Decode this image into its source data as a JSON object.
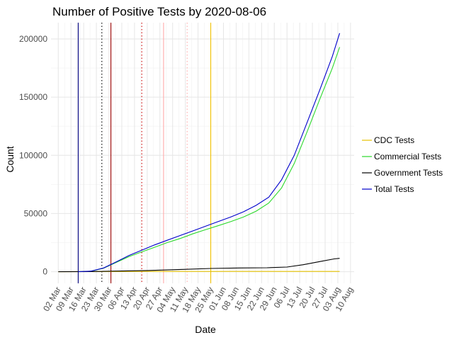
{
  "chart_data": {
    "type": "line",
    "title": "Number of Positive Tests by  2020-08-06",
    "xlabel": "Date",
    "ylabel": "Count",
    "xlim": [
      "2020-02-27",
      "2020-08-12"
    ],
    "ylim": [
      -10000,
      214000
    ],
    "x_ticks": [
      {
        "date": "2020-03-02",
        "label": "02 Mar"
      },
      {
        "date": "2020-03-09",
        "label": "09 Mar"
      },
      {
        "date": "2020-03-16",
        "label": "16 Mar"
      },
      {
        "date": "2020-03-23",
        "label": "23 Mar"
      },
      {
        "date": "2020-03-30",
        "label": "30 Mar"
      },
      {
        "date": "2020-04-06",
        "label": "06 Apr"
      },
      {
        "date": "2020-04-13",
        "label": "13 Apr"
      },
      {
        "date": "2020-04-20",
        "label": "20 Apr"
      },
      {
        "date": "2020-04-27",
        "label": "27 Apr"
      },
      {
        "date": "2020-05-04",
        "label": "04 May"
      },
      {
        "date": "2020-05-11",
        "label": "11 May"
      },
      {
        "date": "2020-05-18",
        "label": "18 May"
      },
      {
        "date": "2020-05-25",
        "label": "25 May"
      },
      {
        "date": "2020-06-01",
        "label": "01 Jun"
      },
      {
        "date": "2020-06-08",
        "label": "08 Jun"
      },
      {
        "date": "2020-06-15",
        "label": "15 Jun"
      },
      {
        "date": "2020-06-22",
        "label": "22 Jun"
      },
      {
        "date": "2020-06-29",
        "label": "29 Jun"
      },
      {
        "date": "2020-07-06",
        "label": "06 Jul"
      },
      {
        "date": "2020-07-13",
        "label": "13 Jul"
      },
      {
        "date": "2020-07-20",
        "label": "20 Jul"
      },
      {
        "date": "2020-07-27",
        "label": "27 Jul"
      },
      {
        "date": "2020-08-03",
        "label": "03 Aug"
      },
      {
        "date": "2020-08-10",
        "label": "10 Aug"
      }
    ],
    "y_ticks": [
      {
        "value": 0,
        "label": "0"
      },
      {
        "value": 50000,
        "label": "50000"
      },
      {
        "value": 100000,
        "label": "100000"
      },
      {
        "value": 150000,
        "label": "150000"
      },
      {
        "value": 200000,
        "label": "200000"
      }
    ],
    "grid": true,
    "legend": {
      "position": "right",
      "entries": [
        {
          "name": "CDC Tests",
          "color": "#e6c200"
        },
        {
          "name": "Commercial Tests",
          "color": "#2bd92b"
        },
        {
          "name": "Government Tests",
          "color": "#000000"
        },
        {
          "name": "Total Tests",
          "color": "#0000cc"
        }
      ]
    },
    "vlines": [
      {
        "date": "2020-03-13",
        "color": "#000080",
        "style": "solid"
      },
      {
        "date": "2020-03-26",
        "color": "#000000",
        "style": "dotted"
      },
      {
        "date": "2020-03-31",
        "color": "#990000",
        "style": "solid"
      },
      {
        "date": "2020-04-17",
        "color": "#cc0000",
        "style": "dotted"
      },
      {
        "date": "2020-04-29",
        "color": "#ffaaaa",
        "style": "solid"
      },
      {
        "date": "2020-05-12",
        "color": "#ffaaaa",
        "style": "dotted"
      },
      {
        "date": "2020-05-25",
        "color": "#f0c000",
        "style": "solid"
      }
    ],
    "series": [
      {
        "name": "CDC Tests",
        "color": "#e6c200",
        "points": [
          [
            "2020-03-02",
            0
          ],
          [
            "2020-03-20",
            100
          ],
          [
            "2020-04-20",
            200
          ],
          [
            "2020-06-01",
            200
          ],
          [
            "2020-08-04",
            200
          ]
        ]
      },
      {
        "name": "Commercial Tests",
        "color": "#2bd92b",
        "points": [
          [
            "2020-03-13",
            0
          ],
          [
            "2020-03-20",
            400
          ],
          [
            "2020-03-27",
            3000
          ],
          [
            "2020-04-03",
            8000
          ],
          [
            "2020-04-10",
            13000
          ],
          [
            "2020-04-17",
            17000
          ],
          [
            "2020-04-24",
            21000
          ],
          [
            "2020-05-01",
            25000
          ],
          [
            "2020-05-08",
            28500
          ],
          [
            "2020-05-15",
            32500
          ],
          [
            "2020-05-22",
            36000
          ],
          [
            "2020-05-29",
            39500
          ],
          [
            "2020-06-05",
            43000
          ],
          [
            "2020-06-12",
            47000
          ],
          [
            "2020-06-19",
            52000
          ],
          [
            "2020-06-26",
            59000
          ],
          [
            "2020-07-03",
            72000
          ],
          [
            "2020-07-10",
            93000
          ],
          [
            "2020-07-17",
            120000
          ],
          [
            "2020-07-24",
            148000
          ],
          [
            "2020-07-31",
            175000
          ],
          [
            "2020-08-04",
            193000
          ]
        ]
      },
      {
        "name": "Government Tests",
        "color": "#000000",
        "points": [
          [
            "2020-03-02",
            0
          ],
          [
            "2020-03-20",
            100
          ],
          [
            "2020-04-01",
            500
          ],
          [
            "2020-04-20",
            1000
          ],
          [
            "2020-05-10",
            2000
          ],
          [
            "2020-05-25",
            2800
          ],
          [
            "2020-06-10",
            3200
          ],
          [
            "2020-06-25",
            3400
          ],
          [
            "2020-07-06",
            4000
          ],
          [
            "2020-07-15",
            6000
          ],
          [
            "2020-07-25",
            9000
          ],
          [
            "2020-08-01",
            11000
          ],
          [
            "2020-08-04",
            11500
          ]
        ]
      },
      {
        "name": "Total Tests",
        "color": "#0000cc",
        "points": [
          [
            "2020-03-13",
            0
          ],
          [
            "2020-03-20",
            500
          ],
          [
            "2020-03-27",
            3200
          ],
          [
            "2020-04-03",
            8500
          ],
          [
            "2020-04-10",
            14000
          ],
          [
            "2020-04-17",
            18500
          ],
          [
            "2020-04-24",
            23000
          ],
          [
            "2020-05-01",
            27000
          ],
          [
            "2020-05-08",
            31000
          ],
          [
            "2020-05-15",
            35000
          ],
          [
            "2020-05-22",
            39000
          ],
          [
            "2020-05-29",
            43000
          ],
          [
            "2020-06-05",
            47000
          ],
          [
            "2020-06-12",
            51500
          ],
          [
            "2020-06-19",
            57000
          ],
          [
            "2020-06-26",
            64000
          ],
          [
            "2020-07-03",
            79000
          ],
          [
            "2020-07-10",
            100000
          ],
          [
            "2020-07-17",
            128000
          ],
          [
            "2020-07-24",
            156000
          ],
          [
            "2020-07-31",
            185000
          ],
          [
            "2020-08-04",
            205000
          ]
        ]
      }
    ]
  }
}
